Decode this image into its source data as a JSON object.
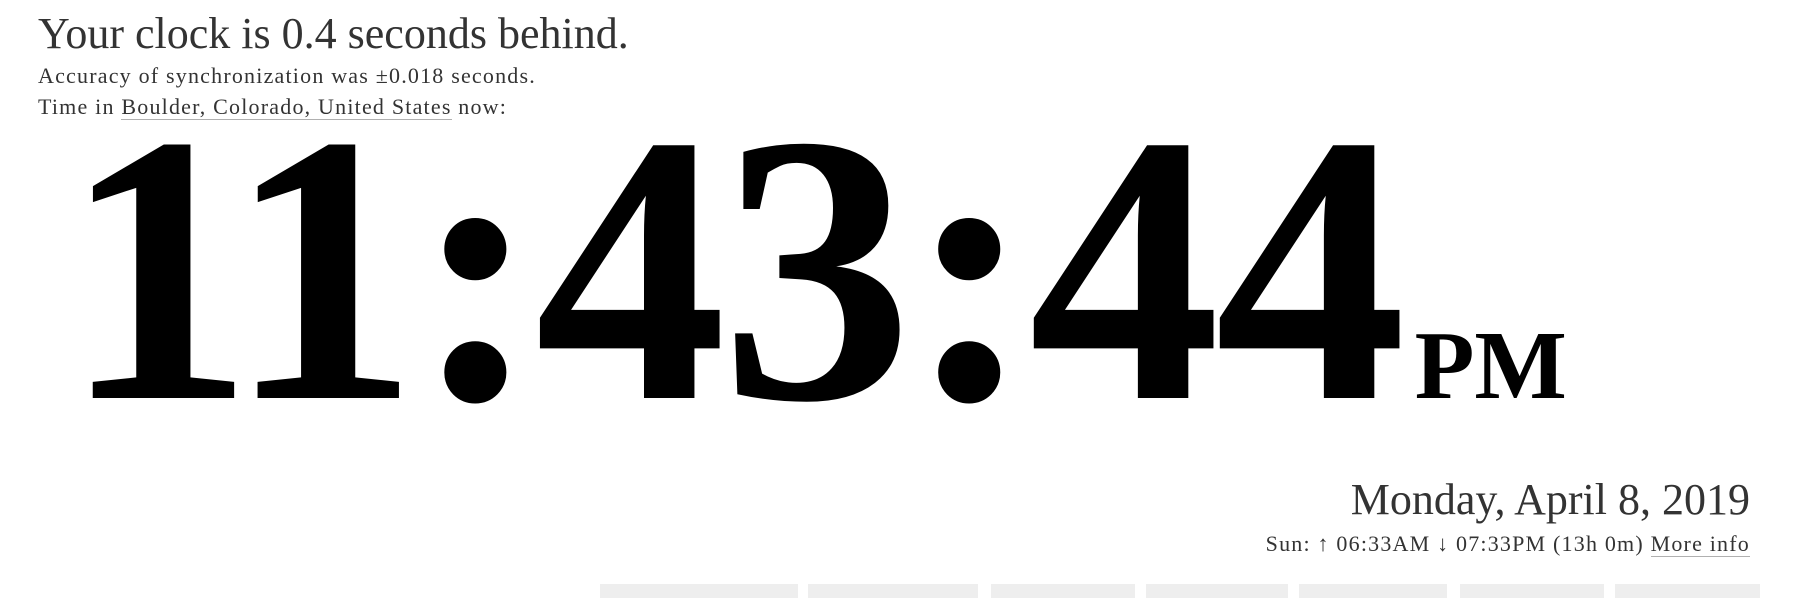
{
  "header": {
    "status": "Your clock is 0.4 seconds behind.",
    "accuracy": "Accuracy of synchronization was ±0.018 seconds.",
    "location_prefix": "Time in ",
    "location_link": "Boulder, Colorado, United States",
    "location_suffix": " now:"
  },
  "clock": {
    "time": "11:43:44",
    "ampm": "PM"
  },
  "date": "Monday, April 8, 2019",
  "sun": {
    "label": "Sun: ",
    "rise_icon": "up-arrow-icon",
    "rise_arrow": "↑",
    "sunrise": " 06:33AM ",
    "set_icon": "down-arrow-icon",
    "set_arrow": "↓",
    "sunset": " 07:33PM ",
    "daylength": "(13h 0m)",
    "more_info": "More info"
  },
  "colors": {
    "text": "#333333",
    "clock": "#000000",
    "tab_bg": "#eeeeee"
  }
}
